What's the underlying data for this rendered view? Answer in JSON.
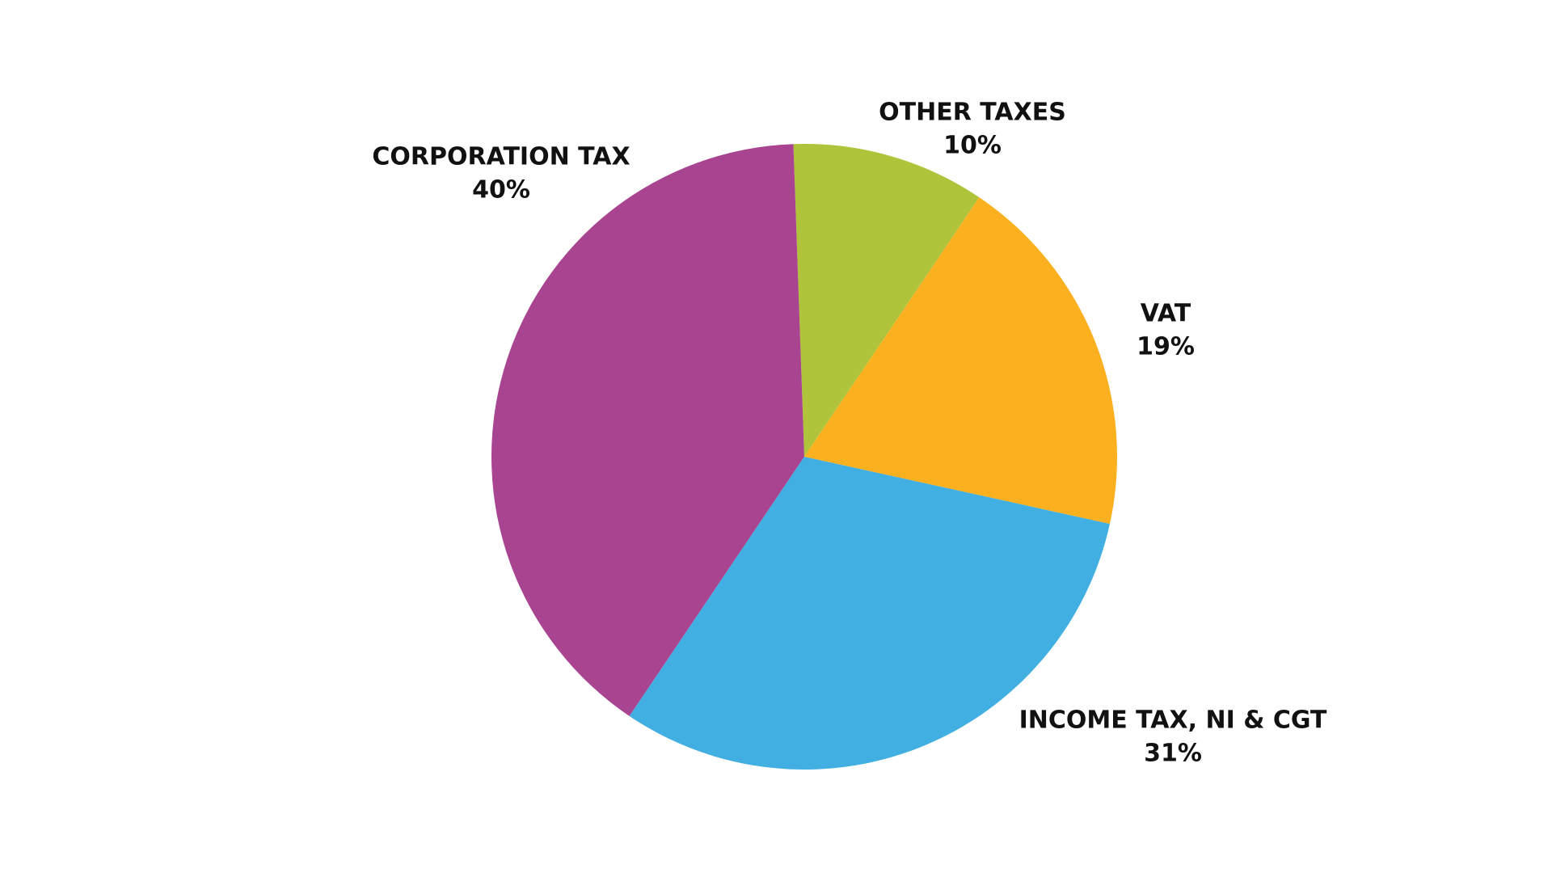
{
  "chart_data": {
    "type": "pie",
    "categories": [
      "OTHER TAXES",
      "VAT",
      "INCOME TAX, NI & CGT",
      "CORPORATION TAX"
    ],
    "values": [
      10,
      19,
      31,
      40
    ],
    "value_labels": [
      "10%",
      "19%",
      "31%",
      "40%"
    ],
    "colors": [
      "#afc43a",
      "#fbb020",
      "#41afe2",
      "#a94491"
    ]
  }
}
